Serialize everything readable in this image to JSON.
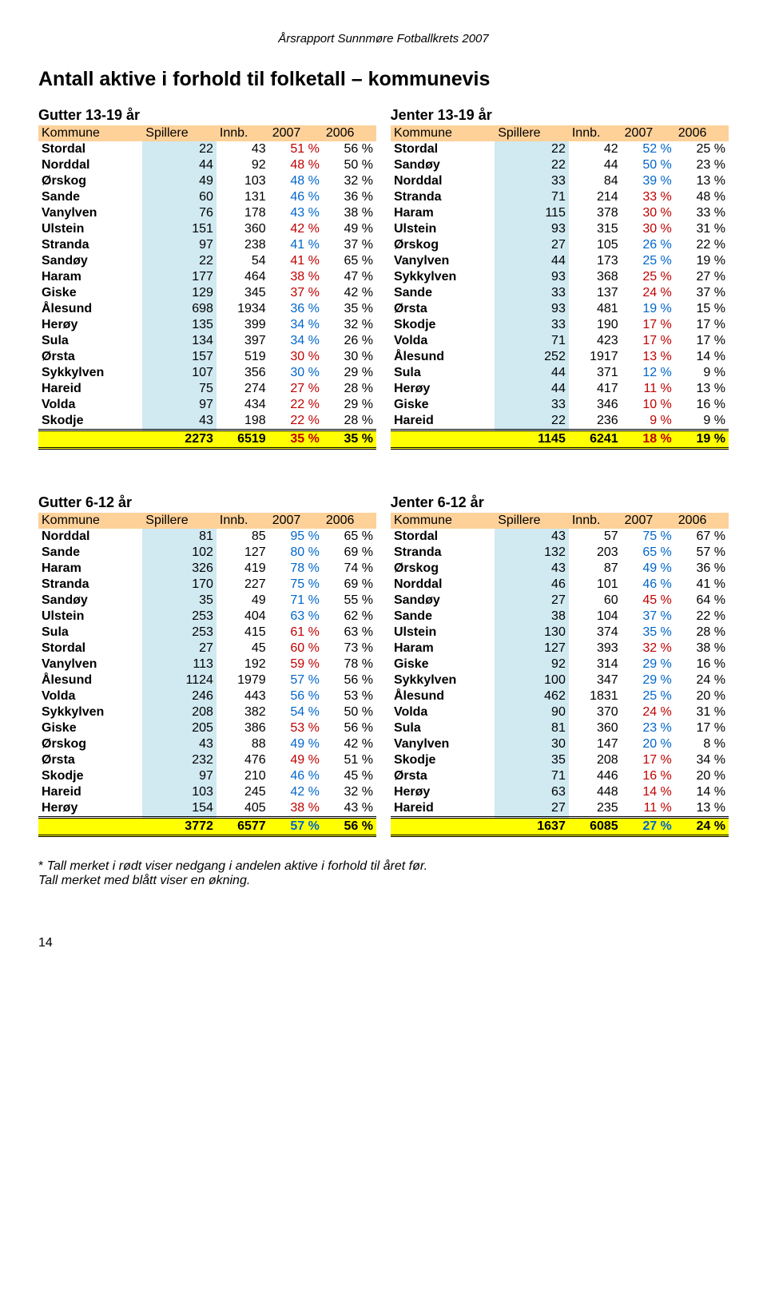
{
  "report_top": "Årsrapport Sunnmøre Fotballkrets 2007",
  "page_title": "Antall aktive i forhold til folketall – kommunevis",
  "section1": {
    "left_title": "Gutter 13-19 år",
    "right_title": "Jenter 13-19 år"
  },
  "section2": {
    "left_title": "Gutter 6-12 år",
    "right_title": "Jenter 6-12 år"
  },
  "headers": [
    "Kommune",
    "Spillere",
    "Innb.",
    "2007",
    "2006",
    "",
    "Kommune",
    "Spillere",
    "Innb.",
    "2007",
    "2006"
  ],
  "colors": {
    "header_bg": "#fed199",
    "spillere_bg": "#d1e9f1",
    "total_bg": "#ffff00",
    "down": "#c00000",
    "up": "#0066cc",
    "text": "#000000",
    "bg": "#ffffff"
  },
  "table1_rows": [
    {
      "lk": "Stordal",
      "ls": 22,
      "li": 43,
      "l7": "51 %",
      "l6": "56 %",
      "l7c": "d",
      "rk": "Stordal",
      "rs": 22,
      "ri": 42,
      "r7": "52 %",
      "r6": "25 %",
      "r7c": "u"
    },
    {
      "lk": "Norddal",
      "ls": 44,
      "li": 92,
      "l7": "48 %",
      "l6": "50 %",
      "l7c": "d",
      "rk": "Sandøy",
      "rs": 22,
      "ri": 44,
      "r7": "50 %",
      "r6": "23 %",
      "r7c": "u"
    },
    {
      "lk": "Ørskog",
      "ls": 49,
      "li": 103,
      "l7": "48 %",
      "l6": "32 %",
      "l7c": "u",
      "rk": "Norddal",
      "rs": 33,
      "ri": 84,
      "r7": "39 %",
      "r6": "13 %",
      "r7c": "u"
    },
    {
      "lk": "Sande",
      "ls": 60,
      "li": 131,
      "l7": "46 %",
      "l6": "36 %",
      "l7c": "u",
      "rk": "Stranda",
      "rs": 71,
      "ri": 214,
      "r7": "33 %",
      "r6": "48 %",
      "r7c": "d"
    },
    {
      "lk": "Vanylven",
      "ls": 76,
      "li": 178,
      "l7": "43 %",
      "l6": "38 %",
      "l7c": "u",
      "rk": "Haram",
      "rs": 115,
      "ri": 378,
      "r7": "30 %",
      "r6": "33 %",
      "r7c": "d"
    },
    {
      "lk": "Ulstein",
      "ls": 151,
      "li": 360,
      "l7": "42 %",
      "l6": "49 %",
      "l7c": "d",
      "rk": "Ulstein",
      "rs": 93,
      "ri": 315,
      "r7": "30 %",
      "r6": "31 %",
      "r7c": "d"
    },
    {
      "lk": "Stranda",
      "ls": 97,
      "li": 238,
      "l7": "41 %",
      "l6": "37 %",
      "l7c": "u",
      "rk": "Ørskog",
      "rs": 27,
      "ri": 105,
      "r7": "26 %",
      "r6": "22 %",
      "r7c": "u"
    },
    {
      "lk": "Sandøy",
      "ls": 22,
      "li": 54,
      "l7": "41 %",
      "l6": "65 %",
      "l7c": "d",
      "rk": "Vanylven",
      "rs": 44,
      "ri": 173,
      "r7": "25 %",
      "r6": "19 %",
      "r7c": "u"
    },
    {
      "lk": "Haram",
      "ls": 177,
      "li": 464,
      "l7": "38 %",
      "l6": "47 %",
      "l7c": "d",
      "rk": "Sykkylven",
      "rs": 93,
      "ri": 368,
      "r7": "25 %",
      "r6": "27 %",
      "r7c": "d"
    },
    {
      "lk": "Giske",
      "ls": 129,
      "li": 345,
      "l7": "37 %",
      "l6": "42 %",
      "l7c": "d",
      "rk": "Sande",
      "rs": 33,
      "ri": 137,
      "r7": "24 %",
      "r6": "37 %",
      "r7c": "d"
    },
    {
      "lk": "Ålesund",
      "ls": 698,
      "li": 1934,
      "l7": "36 %",
      "l6": "35 %",
      "l7c": "u",
      "rk": "Ørsta",
      "rs": 93,
      "ri": 481,
      "r7": "19 %",
      "r6": "15 %",
      "r7c": "u"
    },
    {
      "lk": "Herøy",
      "ls": 135,
      "li": 399,
      "l7": "34 %",
      "l6": "32 %",
      "l7c": "u",
      "rk": "Skodje",
      "rs": 33,
      "ri": 190,
      "r7": "17 %",
      "r6": "17 %",
      "r7c": "d"
    },
    {
      "lk": "Sula",
      "ls": 134,
      "li": 397,
      "l7": "34 %",
      "l6": "26 %",
      "l7c": "u",
      "rk": "Volda",
      "rs": 71,
      "ri": 423,
      "r7": "17 %",
      "r6": "17 %",
      "r7c": "d"
    },
    {
      "lk": "Ørsta",
      "ls": 157,
      "li": 519,
      "l7": "30 %",
      "l6": "30 %",
      "l7c": "d",
      "rk": "Ålesund",
      "rs": 252,
      "ri": 1917,
      "r7": "13 %",
      "r6": "14 %",
      "r7c": "d"
    },
    {
      "lk": "Sykkylven",
      "ls": 107,
      "li": 356,
      "l7": "30 %",
      "l6": "29 %",
      "l7c": "u",
      "rk": "Sula",
      "rs": 44,
      "ri": 371,
      "r7": "12 %",
      "r6": "9 %",
      "r7c": "u"
    },
    {
      "lk": "Hareid",
      "ls": 75,
      "li": 274,
      "l7": "27 %",
      "l6": "28 %",
      "l7c": "d",
      "rk": "Herøy",
      "rs": 44,
      "ri": 417,
      "r7": "11 %",
      "r6": "13 %",
      "r7c": "d"
    },
    {
      "lk": "Volda",
      "ls": 97,
      "li": 434,
      "l7": "22 %",
      "l6": "29 %",
      "l7c": "d",
      "rk": "Giske",
      "rs": 33,
      "ri": 346,
      "r7": "10 %",
      "r6": "16 %",
      "r7c": "d"
    },
    {
      "lk": "Skodje",
      "ls": 43,
      "li": 198,
      "l7": "22 %",
      "l6": "28 %",
      "l7c": "d",
      "rk": "Hareid",
      "rs": 22,
      "ri": 236,
      "r7": "9 %",
      "r6": "9 %",
      "r7c": "d"
    }
  ],
  "table1_total": {
    "ls": 2273,
    "li": 6519,
    "l7": "35 %",
    "l6": "35 %",
    "l7c": "d",
    "rs": 1145,
    "ri": 6241,
    "r7": "18 %",
    "r6": "19 %",
    "r7c": "d"
  },
  "table2_rows": [
    {
      "lk": "Norddal",
      "ls": 81,
      "li": 85,
      "l7": "95 %",
      "l6": "65 %",
      "l7c": "u",
      "rk": "Stordal",
      "rs": 43,
      "ri": 57,
      "r7": "75 %",
      "r6": "67 %",
      "r7c": "u"
    },
    {
      "lk": "Sande",
      "ls": 102,
      "li": 127,
      "l7": "80 %",
      "l6": "69 %",
      "l7c": "u",
      "rk": "Stranda",
      "rs": 132,
      "ri": 203,
      "r7": "65 %",
      "r6": "57 %",
      "r7c": "u"
    },
    {
      "lk": "Haram",
      "ls": 326,
      "li": 419,
      "l7": "78 %",
      "l6": "74 %",
      "l7c": "u",
      "rk": "Ørskog",
      "rs": 43,
      "ri": 87,
      "r7": "49 %",
      "r6": "36 %",
      "r7c": "u"
    },
    {
      "lk": "Stranda",
      "ls": 170,
      "li": 227,
      "l7": "75 %",
      "l6": "69 %",
      "l7c": "u",
      "rk": "Norddal",
      "rs": 46,
      "ri": 101,
      "r7": "46 %",
      "r6": "41 %",
      "r7c": "u"
    },
    {
      "lk": "Sandøy",
      "ls": 35,
      "li": 49,
      "l7": "71 %",
      "l6": "55 %",
      "l7c": "u",
      "rk": "Sandøy",
      "rs": 27,
      "ri": 60,
      "r7": "45 %",
      "r6": "64 %",
      "r7c": "d"
    },
    {
      "lk": "Ulstein",
      "ls": 253,
      "li": 404,
      "l7": "63 %",
      "l6": "62 %",
      "l7c": "u",
      "rk": "Sande",
      "rs": 38,
      "ri": 104,
      "r7": "37 %",
      "r6": "22 %",
      "r7c": "u"
    },
    {
      "lk": "Sula",
      "ls": 253,
      "li": 415,
      "l7": "61 %",
      "l6": "63 %",
      "l7c": "d",
      "rk": "Ulstein",
      "rs": 130,
      "ri": 374,
      "r7": "35 %",
      "r6": "28 %",
      "r7c": "u"
    },
    {
      "lk": "Stordal",
      "ls": 27,
      "li": 45,
      "l7": "60 %",
      "l6": "73 %",
      "l7c": "d",
      "rk": "Haram",
      "rs": 127,
      "ri": 393,
      "r7": "32 %",
      "r6": "38 %",
      "r7c": "d"
    },
    {
      "lk": "Vanylven",
      "ls": 113,
      "li": 192,
      "l7": "59 %",
      "l6": "78 %",
      "l7c": "d",
      "rk": "Giske",
      "rs": 92,
      "ri": 314,
      "r7": "29 %",
      "r6": "16 %",
      "r7c": "u"
    },
    {
      "lk": "Ålesund",
      "ls": 1124,
      "li": 1979,
      "l7": "57 %",
      "l6": "56 %",
      "l7c": "u",
      "rk": "Sykkylven",
      "rs": 100,
      "ri": 347,
      "r7": "29 %",
      "r6": "24 %",
      "r7c": "u"
    },
    {
      "lk": "Volda",
      "ls": 246,
      "li": 443,
      "l7": "56 %",
      "l6": "53 %",
      "l7c": "u",
      "rk": "Ålesund",
      "rs": 462,
      "ri": 1831,
      "r7": "25 %",
      "r6": "20 %",
      "r7c": "u"
    },
    {
      "lk": "Sykkylven",
      "ls": 208,
      "li": 382,
      "l7": "54 %",
      "l6": "50 %",
      "l7c": "u",
      "rk": "Volda",
      "rs": 90,
      "ri": 370,
      "r7": "24 %",
      "r6": "31 %",
      "r7c": "d"
    },
    {
      "lk": "Giske",
      "ls": 205,
      "li": 386,
      "l7": "53 %",
      "l6": "56 %",
      "l7c": "d",
      "rk": "Sula",
      "rs": 81,
      "ri": 360,
      "r7": "23 %",
      "r6": "17 %",
      "r7c": "u"
    },
    {
      "lk": "Ørskog",
      "ls": 43,
      "li": 88,
      "l7": "49 %",
      "l6": "42 %",
      "l7c": "u",
      "rk": "Vanylven",
      "rs": 30,
      "ri": 147,
      "r7": "20 %",
      "r6": "8 %",
      "r7c": "u"
    },
    {
      "lk": "Ørsta",
      "ls": 232,
      "li": 476,
      "l7": "49 %",
      "l6": "51 %",
      "l7c": "d",
      "rk": "Skodje",
      "rs": 35,
      "ri": 208,
      "r7": "17 %",
      "r6": "34 %",
      "r7c": "d"
    },
    {
      "lk": "Skodje",
      "ls": 97,
      "li": 210,
      "l7": "46 %",
      "l6": "45 %",
      "l7c": "u",
      "rk": "Ørsta",
      "rs": 71,
      "ri": 446,
      "r7": "16 %",
      "r6": "20 %",
      "r7c": "d"
    },
    {
      "lk": "Hareid",
      "ls": 103,
      "li": 245,
      "l7": "42 %",
      "l6": "32 %",
      "l7c": "u",
      "rk": "Herøy",
      "rs": 63,
      "ri": 448,
      "r7": "14 %",
      "r6": "14 %",
      "r7c": "d"
    },
    {
      "lk": "Herøy",
      "ls": 154,
      "li": 405,
      "l7": "38 %",
      "l6": "43 %",
      "l7c": "d",
      "rk": "Hareid",
      "rs": 27,
      "ri": 235,
      "r7": "11 %",
      "r6": "13 %",
      "r7c": "d"
    }
  ],
  "table2_total": {
    "ls": 3772,
    "li": 6577,
    "l7": "57 %",
    "l6": "56 %",
    "l7c": "u",
    "rs": 1637,
    "ri": 6085,
    "r7": "27 %",
    "r6": "24 %",
    "r7c": "u"
  },
  "footnote_line1_prefix": "* ",
  "footnote_line1": "Tall merket i rødt viser nedgang i andelen aktive i forhold til året før.",
  "footnote_line2": "Tall merket med blått viser en økning.",
  "page_number": "14"
}
